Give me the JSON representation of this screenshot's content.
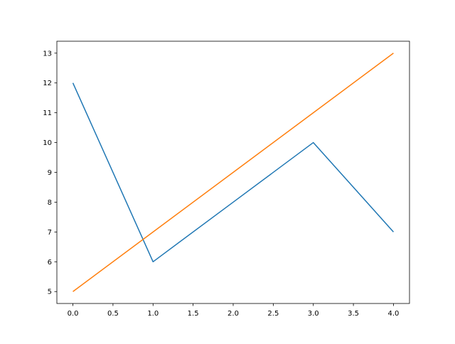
{
  "chart_data": {
    "type": "line",
    "title": "",
    "xlabel": "",
    "ylabel": "",
    "xlim": [
      -0.2,
      4.2
    ],
    "ylim": [
      4.6,
      13.4
    ],
    "grid": false,
    "x": [
      0,
      1,
      2,
      3,
      4
    ],
    "xticks": [
      "0.0",
      "0.5",
      "1.0",
      "1.5",
      "2.0",
      "2.5",
      "3.0",
      "3.5",
      "4.0"
    ],
    "yticks": [
      "5",
      "6",
      "7",
      "8",
      "9",
      "10",
      "11",
      "12",
      "13"
    ],
    "series": [
      {
        "values": [
          12,
          6,
          8,
          10,
          7
        ],
        "color": "#1f77b4"
      },
      {
        "values": [
          5,
          7,
          9,
          11,
          13
        ],
        "color": "#ff7f0e"
      }
    ]
  }
}
